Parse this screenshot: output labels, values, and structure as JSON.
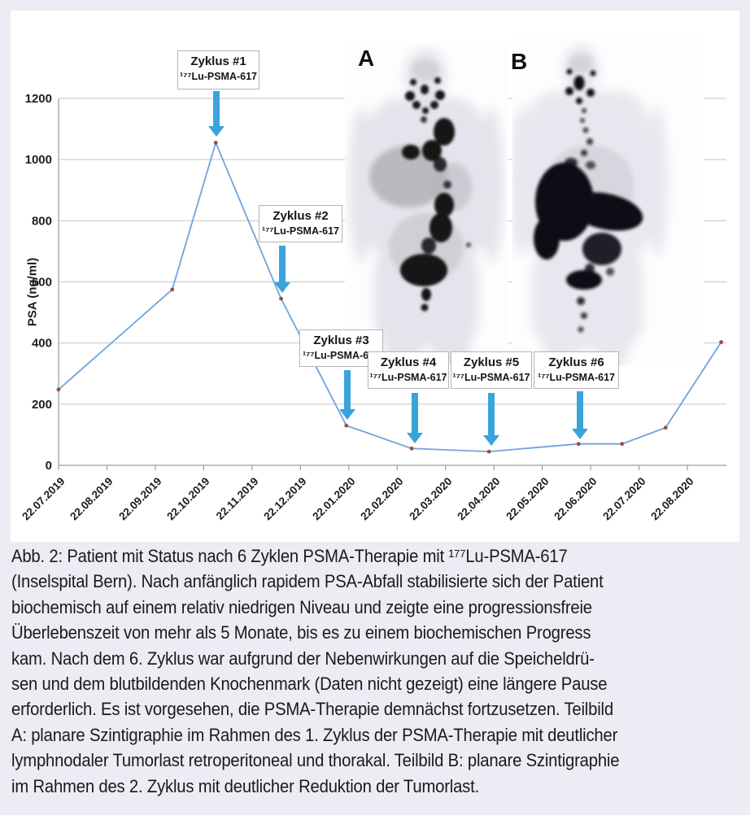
{
  "figure": {
    "panel_a_label": "A",
    "panel_b_label": "B"
  },
  "chart_data": {
    "type": "line",
    "title": "",
    "xlabel": "",
    "ylabel": "PSA (ng/ml)",
    "ylim": [
      0,
      1200
    ],
    "y_ticks": [
      0,
      200,
      400,
      600,
      800,
      1000,
      1200
    ],
    "x_tick_labels": [
      "22.07.2019",
      "22.08.2019",
      "22.09.2019",
      "22.10.2019",
      "22.11.2019",
      "22.12.2019",
      "22.01.2020",
      "22.02.2020",
      "22.03.2020",
      "22.04.2020",
      "22.05.2020",
      "22.06.2020",
      "22.07.2020",
      "22.08.2020"
    ],
    "grid": true,
    "legend_position": "none",
    "series": [
      {
        "name": "PSA (ng/ml)",
        "points": [
          {
            "date": "22.07.2019",
            "month_index": 0.0,
            "value": 248
          },
          {
            "date": "02.10.2019",
            "month_index": 2.35,
            "value": 575
          },
          {
            "date": "28.10.2019",
            "month_index": 3.25,
            "value": 1055
          },
          {
            "date": "12.12.2019",
            "month_index": 4.6,
            "value": 545
          },
          {
            "date": "20.01.2020",
            "month_index": 5.95,
            "value": 130
          },
          {
            "date": "01.03.2020",
            "month_index": 7.3,
            "value": 55
          },
          {
            "date": "20.04.2020",
            "month_index": 8.9,
            "value": 45
          },
          {
            "date": "12.06.2020",
            "month_index": 10.75,
            "value": 70
          },
          {
            "date": "10.07.2020",
            "month_index": 11.65,
            "value": 70
          },
          {
            "date": "08.08.2020",
            "month_index": 12.55,
            "value": 123
          },
          {
            "date": "12.09.2020",
            "month_index": 13.7,
            "value": 403
          }
        ]
      }
    ]
  },
  "cycles": [
    {
      "title": "Zyklus #1",
      "agent": "¹⁷⁷Lu-PSMA-617"
    },
    {
      "title": "Zyklus #2",
      "agent": "¹⁷⁷Lu-PSMA-617"
    },
    {
      "title": "Zyklus #3",
      "agent": "¹⁷⁷Lu-PSMA-617"
    },
    {
      "title": "Zyklus #4",
      "agent": "¹⁷⁷Lu-PSMA-617"
    },
    {
      "title": "Zyklus #5",
      "agent": "¹⁷⁷Lu-PSMA-617"
    },
    {
      "title": "Zyklus #6",
      "agent": "¹⁷⁷Lu-PSMA-617"
    }
  ],
  "colors": {
    "line": "#6fa3dc",
    "marker": "#a04a46",
    "arrow": "#3ba3db",
    "gridline": "#c6c6c6",
    "axis": "#9c9c9c",
    "panel_background": "#edecf5",
    "card_background": "#ffffff"
  },
  "caption": {
    "lines": [
      "Abb. 2: Patient mit Status nach 6 Zyklen PSMA-Therapie mit ¹⁷⁷Lu-PSMA-617",
      "(Inselspital Bern). Nach anfänglich rapidem PSA-Abfall stabilisierte sich der Patient",
      "biochemisch auf einem relativ niedrigen Niveau und zeigte eine progressionsfreie",
      "Überlebenszeit von mehr als 5 Monate, bis es zu einem biochemischen Progress",
      "kam. Nach dem 6. Zyklus war aufgrund der Nebenwirkungen auf die Speicheldrü-",
      "sen und dem blutbildenden Knochenmark (Daten nicht gezeigt) eine längere Pause",
      "erforderlich. Es ist vorgesehen, die PSMA-Therapie demnächst fortzusetzen. Teilbild",
      "A: planare Szintigraphie im Rahmen des 1. Zyklus der PSMA-Therapie mit deutlicher",
      "lymphnodaler Tumorlast retroperitoneal und thorakal. Teilbild B: planare Szintigraphie",
      "im Rahmen des 2. Zyklus mit deutlicher Reduktion der Tumorlast."
    ]
  }
}
